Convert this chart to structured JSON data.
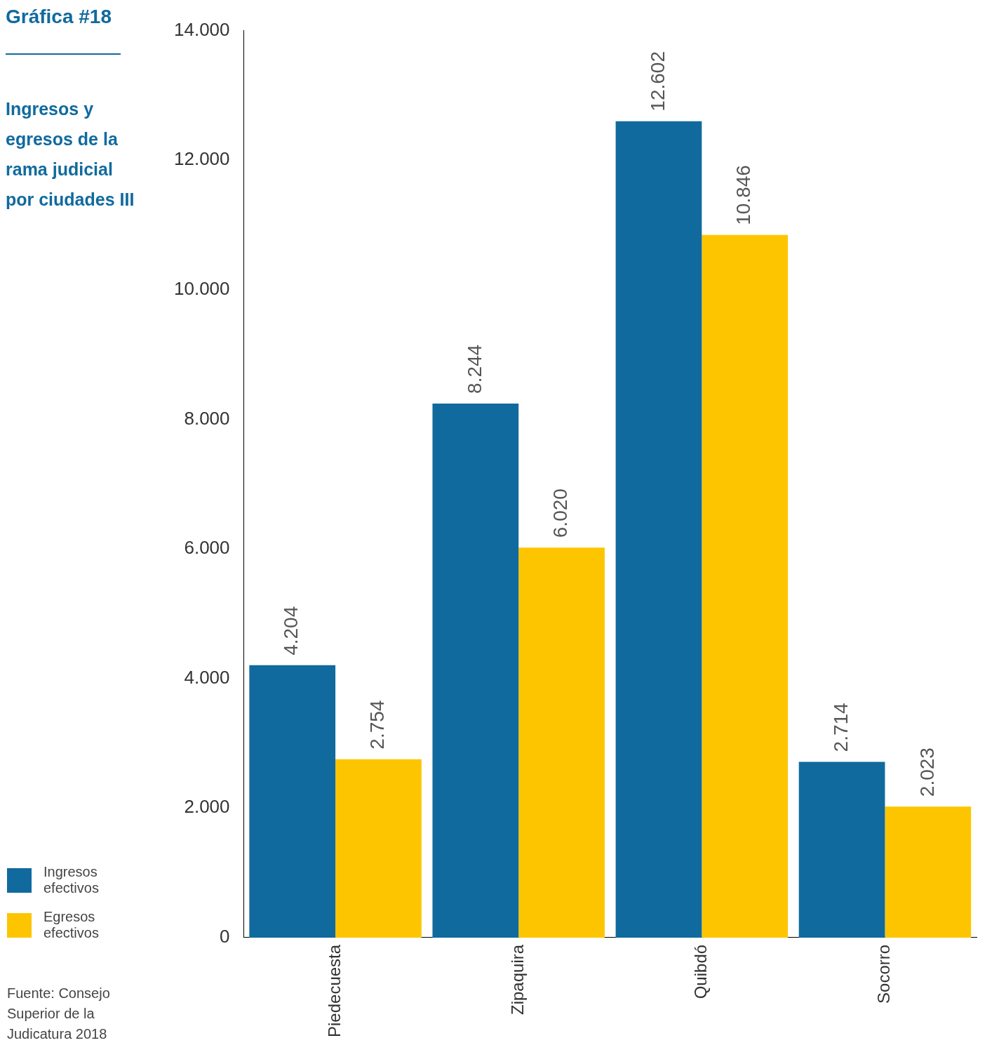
{
  "chart_data": {
    "type": "bar",
    "title": "Gráfica #18",
    "subtitle": "Ingresos y egresos de la rama judicial por ciudades III",
    "categories": [
      "Piedecuesta",
      "Zipaquira",
      "Quibdó",
      "Socorro"
    ],
    "series": [
      {
        "name": "Ingresos efectivos",
        "color": "#106a9e",
        "values": [
          4204,
          8244,
          12602,
          2714
        ],
        "value_labels": [
          "4.204",
          "8.244",
          "12.602",
          "2.714"
        ]
      },
      {
        "name": "Egresos efectivos",
        "color": "#fdc500",
        "values": [
          2754,
          6020,
          10846,
          2023
        ],
        "value_labels": [
          "2.754",
          "6.020",
          "10.846",
          "2.023"
        ]
      }
    ],
    "ylim": [
      0,
      14000
    ],
    "yticks": [
      0,
      {
        "value": 2000,
        "label": "2.000"
      },
      {
        "value": 4000,
        "label": "4.000"
      },
      {
        "value": 6000,
        "label": "6.000"
      },
      {
        "value": 8000,
        "label": "8.000"
      },
      {
        "value": 10000,
        "label": "10.000"
      },
      {
        "value": 12000,
        "label": "12.000"
      },
      {
        "value": 14000,
        "label": "14.000"
      }
    ],
    "grid": false,
    "legend": "bottom left",
    "annotations": [
      "Fuente: Consejo Superior de la Judicatura 2018"
    ]
  }
}
